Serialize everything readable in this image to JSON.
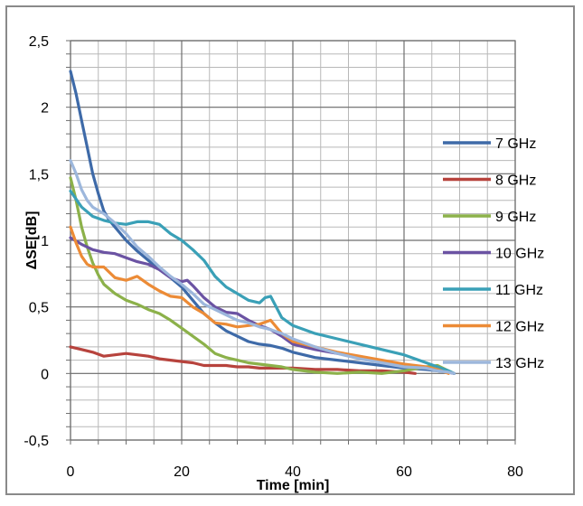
{
  "chart_data": {
    "type": "line",
    "title": "",
    "xlabel": "Time [min]",
    "ylabel": "ΔSE[dB]",
    "xlim": [
      0,
      80
    ],
    "ylim": [
      -0.5,
      2.5
    ],
    "x_ticks": [
      "0",
      "20",
      "40",
      "60",
      "80"
    ],
    "y_ticks": [
      "-0,5",
      "0",
      "0,5",
      "1",
      "1,5",
      "2",
      "2,5"
    ],
    "grid": true,
    "legend_position": "right",
    "series": [
      {
        "name": "7 GHz",
        "color": "#3e6aa8",
        "x": [
          0,
          1,
          2,
          3,
          4,
          5,
          6,
          7,
          8,
          10,
          12,
          14,
          16,
          18,
          20,
          22,
          24,
          26,
          28,
          30,
          32,
          34,
          36,
          38,
          40,
          44,
          48,
          52,
          56,
          60,
          64,
          66,
          68,
          69
        ],
        "y": [
          2.27,
          2.1,
          1.9,
          1.7,
          1.5,
          1.35,
          1.22,
          1.15,
          1.1,
          1.0,
          0.92,
          0.85,
          0.78,
          0.72,
          0.65,
          0.55,
          0.45,
          0.38,
          0.32,
          0.28,
          0.24,
          0.22,
          0.21,
          0.19,
          0.16,
          0.12,
          0.1,
          0.08,
          0.06,
          0.04,
          0.03,
          0.02,
          0.01,
          0.0
        ]
      },
      {
        "name": "8 GHz",
        "color": "#b7433d",
        "x": [
          0,
          2,
          4,
          6,
          8,
          10,
          12,
          14,
          16,
          18,
          20,
          22,
          24,
          26,
          28,
          30,
          32,
          34,
          36,
          38,
          40,
          44,
          48,
          52,
          56,
          60,
          62
        ],
        "y": [
          0.2,
          0.18,
          0.16,
          0.13,
          0.14,
          0.15,
          0.14,
          0.13,
          0.11,
          0.1,
          0.09,
          0.08,
          0.06,
          0.06,
          0.06,
          0.05,
          0.05,
          0.04,
          0.04,
          0.04,
          0.04,
          0.03,
          0.03,
          0.02,
          0.02,
          0.01,
          0.0
        ]
      },
      {
        "name": "9 GHz",
        "color": "#8cb14a",
        "x": [
          0,
          1,
          2,
          3,
          4,
          5,
          6,
          8,
          10,
          12,
          14,
          16,
          18,
          20,
          22,
          24,
          26,
          28,
          30,
          32,
          34,
          36,
          38,
          40,
          44,
          48,
          52,
          56,
          60,
          64,
          66,
          68,
          69
        ],
        "y": [
          1.47,
          1.3,
          1.1,
          0.95,
          0.83,
          0.74,
          0.67,
          0.6,
          0.55,
          0.52,
          0.48,
          0.45,
          0.4,
          0.34,
          0.28,
          0.22,
          0.15,
          0.12,
          0.1,
          0.08,
          0.07,
          0.06,
          0.05,
          0.03,
          0.01,
          0.0,
          0.01,
          0.0,
          0.02,
          0.05,
          0.06,
          0.02,
          0.0
        ]
      },
      {
        "name": "10 GHz",
        "color": "#6b53a3",
        "x": [
          0,
          2,
          4,
          6,
          8,
          10,
          12,
          14,
          16,
          18,
          20,
          21,
          22,
          24,
          26,
          28,
          30,
          32,
          34,
          36,
          38,
          40,
          44,
          48,
          52,
          56,
          60,
          64,
          66,
          68,
          69
        ],
        "y": [
          1.02,
          0.97,
          0.93,
          0.91,
          0.9,
          0.87,
          0.84,
          0.82,
          0.78,
          0.72,
          0.69,
          0.7,
          0.66,
          0.57,
          0.5,
          0.46,
          0.45,
          0.4,
          0.36,
          0.33,
          0.28,
          0.22,
          0.18,
          0.15,
          0.12,
          0.09,
          0.06,
          0.04,
          0.03,
          0.01,
          0.0
        ]
      },
      {
        "name": "11 GHz",
        "color": "#3aa0b7",
        "x": [
          0,
          2,
          4,
          6,
          8,
          10,
          12,
          14,
          16,
          18,
          20,
          22,
          24,
          26,
          28,
          30,
          32,
          34,
          35,
          36,
          37,
          38,
          40,
          44,
          48,
          52,
          56,
          60,
          62,
          64,
          66,
          68,
          69
        ],
        "y": [
          1.37,
          1.25,
          1.18,
          1.15,
          1.13,
          1.12,
          1.14,
          1.14,
          1.12,
          1.05,
          1.0,
          0.93,
          0.85,
          0.73,
          0.65,
          0.6,
          0.55,
          0.53,
          0.57,
          0.58,
          0.5,
          0.42,
          0.36,
          0.3,
          0.26,
          0.22,
          0.18,
          0.14,
          0.11,
          0.08,
          0.05,
          0.02,
          0.0
        ]
      },
      {
        "name": "12 GHz",
        "color": "#ec8b36",
        "x": [
          0,
          1,
          2,
          3,
          4,
          6,
          8,
          10,
          12,
          14,
          16,
          18,
          20,
          22,
          24,
          26,
          28,
          30,
          32,
          34,
          36,
          38,
          40,
          44,
          48,
          52,
          56,
          60,
          64,
          66,
          68
        ],
        "y": [
          1.1,
          0.98,
          0.88,
          0.82,
          0.8,
          0.8,
          0.72,
          0.7,
          0.73,
          0.67,
          0.62,
          0.58,
          0.57,
          0.5,
          0.45,
          0.38,
          0.37,
          0.35,
          0.36,
          0.37,
          0.4,
          0.3,
          0.24,
          0.2,
          0.16,
          0.13,
          0.1,
          0.07,
          0.05,
          0.03,
          0.0
        ]
      },
      {
        "name": "13 GHz",
        "color": "#9db7dc",
        "x": [
          0,
          1,
          2,
          3,
          4,
          6,
          8,
          10,
          12,
          14,
          16,
          18,
          20,
          22,
          24,
          26,
          28,
          30,
          32,
          34,
          36,
          38,
          40,
          44,
          48,
          52,
          56,
          60,
          64,
          66,
          68,
          69
        ],
        "y": [
          1.6,
          1.5,
          1.38,
          1.3,
          1.25,
          1.2,
          1.13,
          1.05,
          0.95,
          0.88,
          0.8,
          0.73,
          0.67,
          0.6,
          0.52,
          0.48,
          0.44,
          0.4,
          0.38,
          0.35,
          0.33,
          0.3,
          0.26,
          0.2,
          0.15,
          0.11,
          0.08,
          0.05,
          0.04,
          0.02,
          0.01,
          0.0
        ]
      }
    ]
  }
}
